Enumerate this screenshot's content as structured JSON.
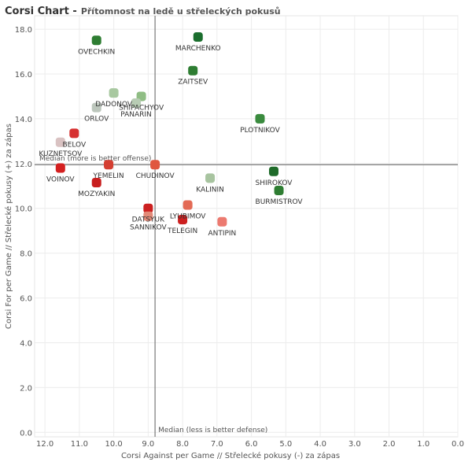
{
  "header": {
    "title": "Corsi Chart -",
    "subtitle": "Přítomnost na ledě u střeleckých pokusů"
  },
  "chart_data": {
    "type": "scatter",
    "title": "Corsi Chart -",
    "subtitle": "Přítomnost na ledě u střeleckých pokusů",
    "xlabel": "Corsi Against per Game // Střelecké pokusy (-) za zápas",
    "ylabel": "Corsi For per Game // Střelecké pokusy (+) za zápas",
    "xlim": [
      12.3,
      0
    ],
    "ylim": [
      -0.2,
      18.6
    ],
    "x_reversed": true,
    "grid": true,
    "x_ticks": [
      "12.0",
      "11.0",
      "10.0",
      "9.0",
      "8.0",
      "7.0",
      "6.0",
      "5.0",
      "4.0",
      "3.0",
      "2.0",
      "1.0",
      "0.0"
    ],
    "y_ticks": [
      "0.0",
      "2.0",
      "4.0",
      "6.0",
      "8.0",
      "10.0",
      "12.0",
      "14.0",
      "16.0",
      "18.0"
    ],
    "median_lines": {
      "x": 8.8,
      "y": 11.95,
      "x_label": "Median (less is better defense)",
      "y_label": "Median (more is better offense)"
    },
    "points": [
      {
        "name": "OVECHKIN",
        "x": 10.5,
        "y": 17.5,
        "color": "#2e7d32"
      },
      {
        "name": "MARCHENKO",
        "x": 7.55,
        "y": 17.65,
        "color": "#1b6e2e"
      },
      {
        "name": "ZAITSEV",
        "x": 7.7,
        "y": 16.15,
        "color": "#2e7d32"
      },
      {
        "name": "DADONOV",
        "x": 10.0,
        "y": 15.15,
        "color": "#a8c8a0"
      },
      {
        "name": "SHIPACHYOV",
        "x": 9.2,
        "y": 15.0,
        "color": "#8fbd84"
      },
      {
        "name": "PANARIN",
        "x": 9.35,
        "y": 14.7,
        "color": "#b8ccb4"
      },
      {
        "name": "ORLOV",
        "x": 10.5,
        "y": 14.5,
        "color": "#bcc6bc"
      },
      {
        "name": "PLOTNIKOV",
        "x": 5.75,
        "y": 14.0,
        "color": "#3a8b3e"
      },
      {
        "name": "BELOV",
        "x": 11.15,
        "y": 13.35,
        "color": "#d63030"
      },
      {
        "name": "KUZNETSOV",
        "x": 11.55,
        "y": 12.95,
        "color": "#d9c2c2"
      },
      {
        "name": "VOINOV",
        "x": 11.55,
        "y": 11.8,
        "color": "#d42020"
      },
      {
        "name": "YEMELIN",
        "x": 10.15,
        "y": 11.95,
        "color": "#d43f32"
      },
      {
        "name": "CHUDINOV",
        "x": 8.8,
        "y": 11.95,
        "color": "#e0573f"
      },
      {
        "name": "MOZYAKIN",
        "x": 10.5,
        "y": 11.15,
        "color": "#c81e1e"
      },
      {
        "name": "SHIROKOV",
        "x": 5.35,
        "y": 11.65,
        "color": "#1f6b2a"
      },
      {
        "name": "KALININ",
        "x": 7.2,
        "y": 11.35,
        "color": "#a8c4a0"
      },
      {
        "name": "BURMISTROV",
        "x": 5.2,
        "y": 10.8,
        "color": "#2e7d32"
      },
      {
        "name": "DATSYUK",
        "x": 9.0,
        "y": 10.0,
        "color": "#cc2020"
      },
      {
        "name": "SANNIKOV",
        "x": 9.0,
        "y": 9.65,
        "color": "#e28a78"
      },
      {
        "name": "LYUBIMOV",
        "x": 7.85,
        "y": 10.15,
        "color": "#e36a55"
      },
      {
        "name": "TELEGIN",
        "x": 8.0,
        "y": 9.5,
        "color": "#cc2020"
      },
      {
        "name": "ANTIPIN",
        "x": 6.85,
        "y": 9.4,
        "color": "#ec7a70"
      }
    ]
  }
}
